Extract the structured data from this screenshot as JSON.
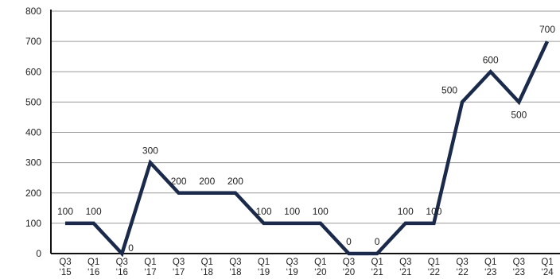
{
  "chart_data": {
    "type": "line",
    "title": "",
    "xlabel": "",
    "ylabel": "",
    "ylim": [
      0,
      800
    ],
    "yticks": [
      0,
      100,
      200,
      300,
      400,
      500,
      600,
      700,
      800
    ],
    "grid": true,
    "categories": [
      {
        "q": "Q3",
        "y": "‘15"
      },
      {
        "q": "Q1",
        "y": "‘16"
      },
      {
        "q": "Q3",
        "y": "‘16"
      },
      {
        "q": "Q1",
        "y": "‘17"
      },
      {
        "q": "Q3",
        "y": "‘17"
      },
      {
        "q": "Q1",
        "y": "‘18"
      },
      {
        "q": "Q3",
        "y": "‘18"
      },
      {
        "q": "Q1",
        "y": "‘19"
      },
      {
        "q": "Q3",
        "y": "‘19"
      },
      {
        "q": "Q1",
        "y": "‘20"
      },
      {
        "q": "Q3",
        "y": "‘20"
      },
      {
        "q": "Q1",
        "y": "‘21"
      },
      {
        "q": "Q3",
        "y": "‘21"
      },
      {
        "q": "Q1",
        "y": "‘22"
      },
      {
        "q": "Q3",
        "y": "‘22"
      },
      {
        "q": "Q1",
        "y": "‘23"
      },
      {
        "q": "Q3",
        "y": "‘23"
      },
      {
        "q": "Q1",
        "y": "‘24"
      }
    ],
    "series": [
      {
        "values": [
          100,
          100,
          0,
          300,
          200,
          200,
          200,
          100,
          100,
          100,
          0,
          0,
          100,
          100,
          500,
          600,
          500,
          700
        ],
        "color": "#1b2a4a"
      }
    ],
    "colors": {
      "line": "#1b2a4a",
      "grid": "#9a9a9a",
      "axis": "#111111",
      "text": "#222222"
    }
  }
}
